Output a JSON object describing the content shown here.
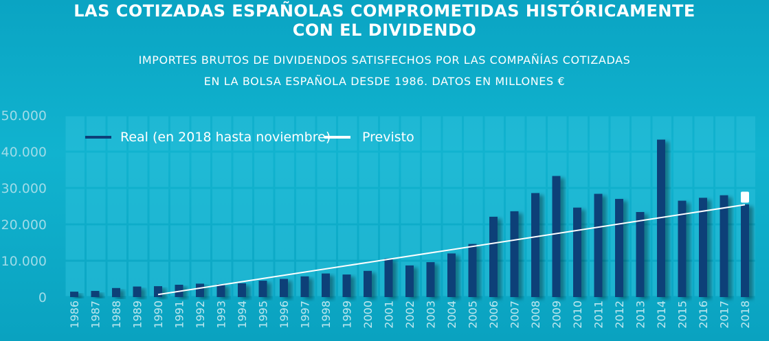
{
  "header": {
    "title_line1": "LAS COTIZADAS ESPAÑOLAS COMPROMETIDAS HISTÓRICAMENTE",
    "title_line2": "CON EL DIVIDENDO",
    "subtitle_line1": "IMPORTES BRUTOS DE DIVIDENDOS SATISFECHOS POR LAS COMPAÑÍAS COTIZADAS",
    "subtitle_line2": "EN LA BOLSA ESPAÑOLA DESDE 1986. DATOS EN MILLONES €"
  },
  "colors": {
    "bar": "#0d3f78",
    "trend": "#ffffff",
    "grid_cell": "#2cc0da"
  },
  "chart_data": {
    "type": "bar",
    "title": "LAS COTIZADAS ESPAÑOLAS COMPROMETIDAS HISTÓRICAMENTE CON EL DIVIDENDO",
    "xlabel": "",
    "ylabel": "",
    "ylim": [
      0,
      50000
    ],
    "yticks": [
      0,
      10000,
      20000,
      30000,
      40000,
      50000
    ],
    "ytick_labels": [
      "0",
      "10.000",
      "20.000",
      "30.000",
      "40.000",
      "50.000"
    ],
    "categories": [
      "1986",
      "1987",
      "1988",
      "1989",
      "1990",
      "1991",
      "1992",
      "1993",
      "1994",
      "1995",
      "1996",
      "1997",
      "1998",
      "1999",
      "2000",
      "2001",
      "2002",
      "2003",
      "2004",
      "2005",
      "2006",
      "2007",
      "2008",
      "2009",
      "2010",
      "2011",
      "2012",
      "2013",
      "2014",
      "2015",
      "2016",
      "2017",
      "2018"
    ],
    "series": [
      {
        "name": "Real (en 2018 hasta noviembre)",
        "type": "bar",
        "values": [
          1500,
          1700,
          2500,
          2900,
          3000,
          3400,
          3700,
          3500,
          3800,
          4500,
          5000,
          5700,
          6500,
          6200,
          7200,
          10600,
          8700,
          9600,
          12000,
          14600,
          22100,
          23600,
          28600,
          33300,
          24600,
          28400,
          27000,
          23400,
          43300,
          26500,
          27300,
          28000,
          25500
        ]
      },
      {
        "name": "Previsto",
        "type": "line",
        "x": [
          "1990",
          "2018"
        ],
        "values": [
          700,
          25400
        ]
      }
    ],
    "legend": {
      "position": "top-left",
      "entries": [
        "Real (en 2018 hasta noviembre)",
        "Previsto"
      ]
    },
    "grid": true
  }
}
